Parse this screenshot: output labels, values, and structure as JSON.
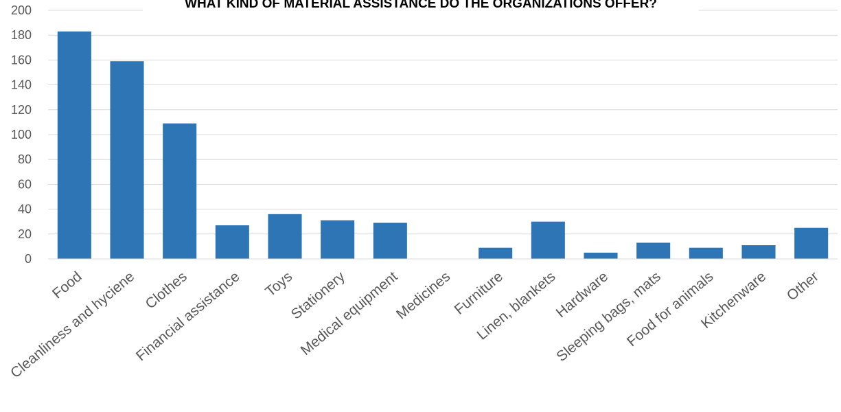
{
  "chart_data": {
    "type": "bar",
    "title": "WHAT KIND OF MATERIAL ASSISTANCE DO THE ORGANIZATIONS OFFER?",
    "categories": [
      "Food",
      "Cleanliness and hyciene",
      "Clothes",
      "Financial assistance",
      "Toys",
      "Stationery",
      "Medical equipment",
      "Medicines",
      "Furniture",
      "Linen, blankets",
      "Hardware",
      "Sleeping bags, mats",
      "Food for animals",
      "Kitchenware",
      "Other"
    ],
    "values": [
      183,
      159,
      109,
      27,
      36,
      31,
      29,
      0,
      9,
      30,
      5,
      13,
      9,
      11,
      25
    ],
    "color": "#2e75b6",
    "ylim": [
      0,
      200
    ],
    "yticks": [
      0,
      20,
      40,
      60,
      80,
      100,
      120,
      140,
      160,
      180,
      200
    ],
    "grid": true
  }
}
